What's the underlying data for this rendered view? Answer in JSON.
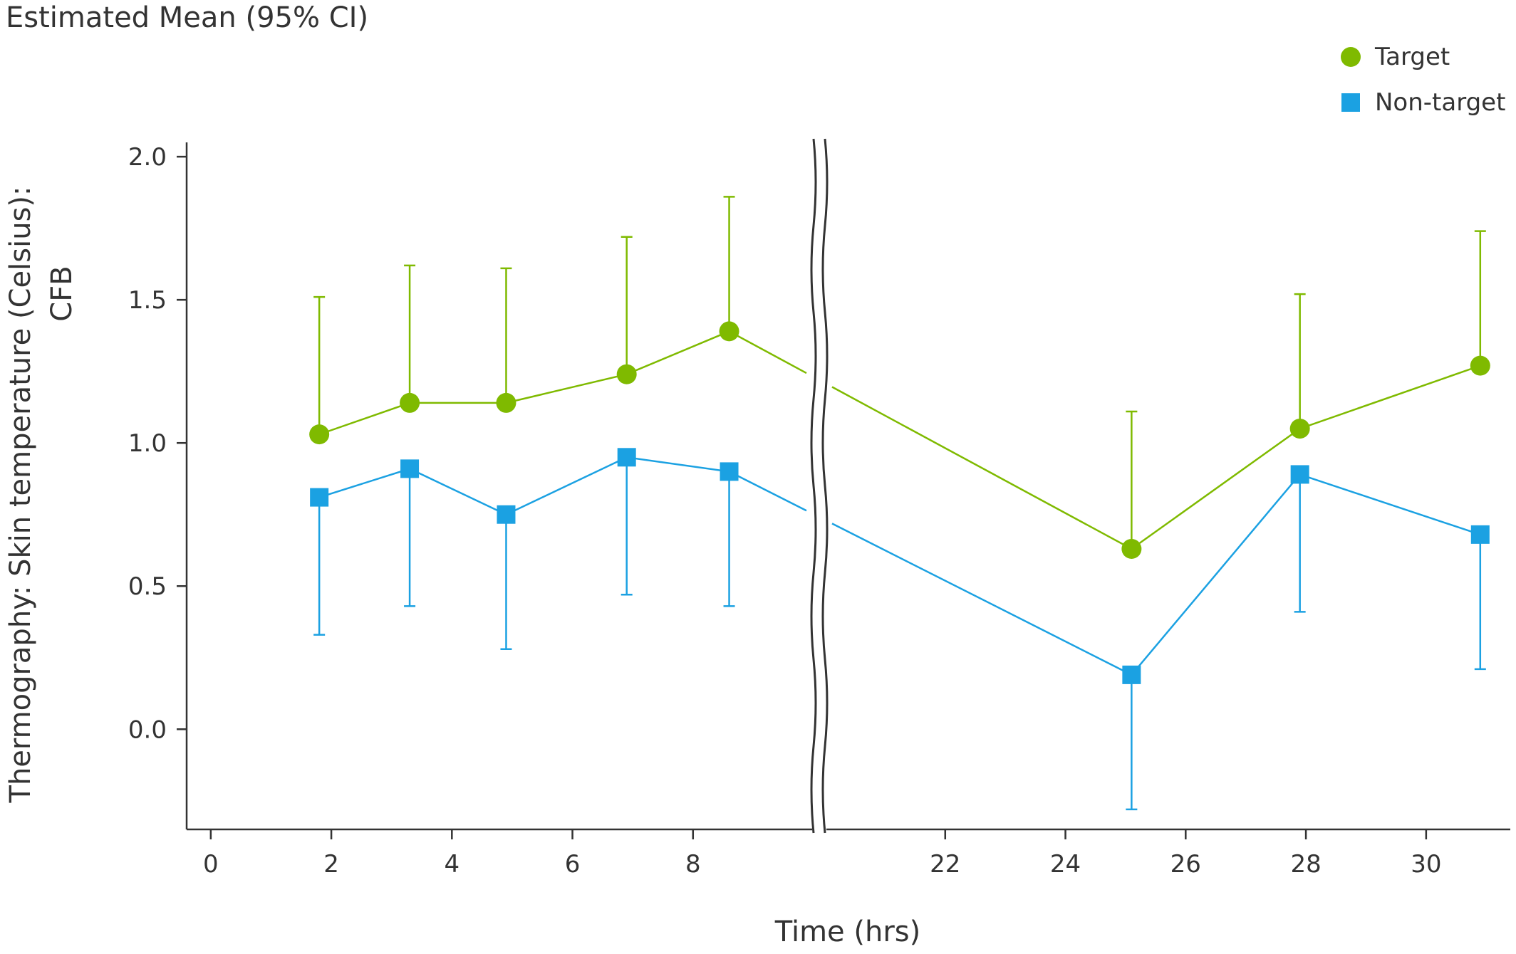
{
  "chart_data": {
    "type": "line",
    "title": "Estimated Mean (95% CI)",
    "xlabel": "Time (hrs)",
    "ylabel": "Thermography: Skin temperature (Celsius): CFB",
    "ylim": [
      -0.35,
      2.05
    ],
    "y_ticks": [
      0.0,
      0.5,
      1.0,
      1.5,
      2.0
    ],
    "y_tick_labels": [
      "0.0",
      "0.5",
      "1.0",
      "1.5",
      "2.0"
    ],
    "x_broken": true,
    "x_segments": [
      {
        "xlim": [
          -0.4,
          10
        ],
        "ticks": [
          0,
          2,
          4,
          6,
          8
        ],
        "tick_labels": [
          "0",
          "2",
          "4",
          "6",
          "8"
        ]
      },
      {
        "xlim": [
          20,
          31.4
        ],
        "ticks": [
          22,
          24,
          26,
          28,
          30
        ],
        "tick_labels": [
          "22",
          "24",
          "26",
          "28",
          "30"
        ]
      }
    ],
    "legend_position": "top-right",
    "series": [
      {
        "name": "Target",
        "color": "#7fba00",
        "marker": "circle",
        "x": [
          1.8,
          3.3,
          4.9,
          6.9,
          8.6,
          25.1,
          27.9,
          30.9
        ],
        "y": [
          1.03,
          1.14,
          1.14,
          1.24,
          1.39,
          0.63,
          1.05,
          1.27
        ],
        "ci_upper": [
          1.51,
          1.62,
          1.61,
          1.72,
          1.86,
          1.11,
          1.52,
          1.74
        ],
        "ci_direction": "up"
      },
      {
        "name": "Non-target",
        "color": "#1ba1e2",
        "marker": "square",
        "x": [
          1.8,
          3.3,
          4.9,
          6.9,
          8.6,
          25.1,
          27.9,
          30.9
        ],
        "y": [
          0.81,
          0.91,
          0.75,
          0.95,
          0.9,
          0.19,
          0.89,
          0.68
        ],
        "ci_lower": [
          0.33,
          0.43,
          0.28,
          0.47,
          0.43,
          -0.28,
          0.41,
          0.21
        ],
        "ci_direction": "down"
      }
    ]
  }
}
